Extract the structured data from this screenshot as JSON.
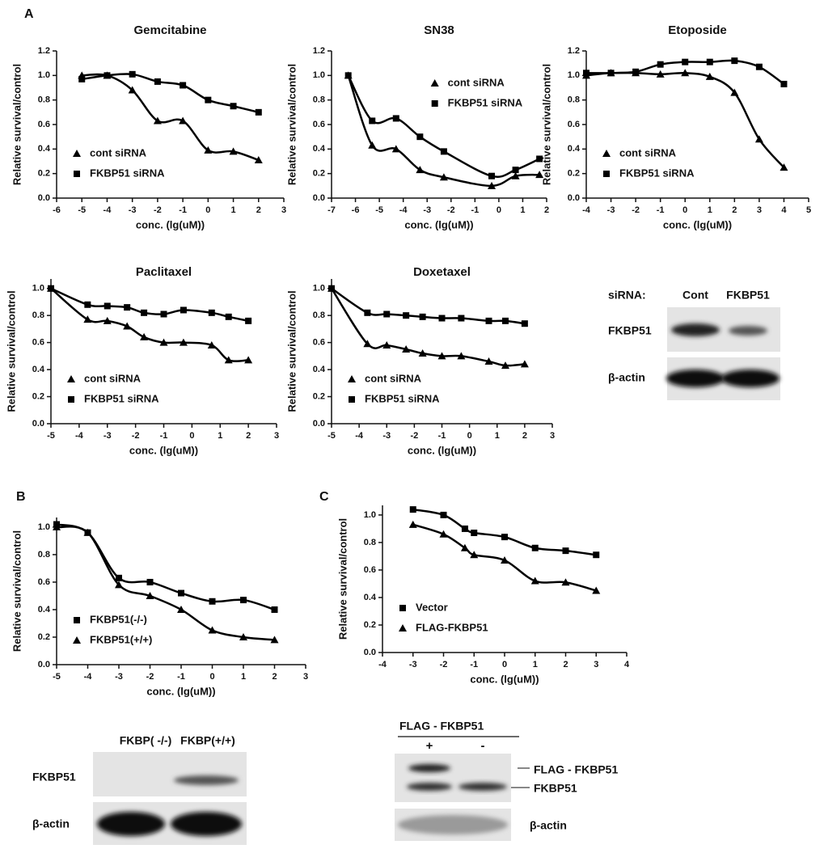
{
  "panel_labels": [
    "A",
    "B",
    "C"
  ],
  "chart_data": [
    {
      "type": "scatter",
      "title": "Gemcitabine",
      "x_label": "conc. (lg(uM))",
      "y_label": "Relative survival/control",
      "x": [
        -5,
        -4,
        -3,
        -2,
        -1,
        0,
        1,
        2
      ],
      "series": [
        {
          "name": "cont siRNA",
          "marker": "triangle",
          "color": "#000000",
          "values": [
            1.0,
            1.0,
            0.88,
            0.63,
            0.63,
            0.39,
            0.38,
            0.31
          ]
        },
        {
          "name": "FKBP51 siRNA",
          "marker": "square",
          "color": "#000000",
          "values": [
            0.97,
            1.0,
            1.01,
            0.95,
            0.92,
            0.8,
            0.75,
            0.7
          ]
        }
      ],
      "xlim": [
        -6,
        3
      ],
      "xticks": [
        -6,
        -5,
        -4,
        -3,
        -2,
        -1,
        0,
        1,
        2,
        3
      ],
      "ylim": [
        0,
        1.2
      ],
      "yticks": [
        {
          "value": 0,
          "label": "0.0"
        },
        0.2,
        0.4,
        0.6,
        0.8,
        {
          "value": 1,
          "label": "1.0"
        },
        1.2
      ],
      "legend": "lower left"
    },
    {
      "type": "scatter",
      "title": "SN38",
      "x_label": "conc. (lg(uM))",
      "y_label": "Relative survival/control",
      "x": [
        -6.3,
        -5.3,
        -4.3,
        -3.3,
        -2.3,
        -0.3,
        0.7,
        1.7
      ],
      "series": [
        {
          "name": "cont siRNA",
          "marker": "triangle",
          "color": "#000000",
          "values": [
            1.0,
            0.43,
            0.4,
            0.23,
            0.17,
            0.1,
            0.18,
            0.19
          ]
        },
        {
          "name": "FKBP51 siRNA",
          "marker": "square",
          "color": "#000000",
          "values": [
            1.0,
            0.63,
            0.65,
            0.5,
            0.38,
            0.18,
            0.23,
            0.32
          ]
        }
      ],
      "xlim": [
        -7,
        2
      ],
      "xticks": [
        -7,
        -6,
        -5,
        -4,
        -3,
        -2,
        -1,
        0,
        1,
        2
      ],
      "ylim": [
        0,
        1.2
      ],
      "yticks": [
        {
          "value": 0,
          "label": "0.0"
        },
        0.2,
        0.4,
        0.6,
        0.8,
        {
          "value": 1,
          "label": "1.0"
        },
        1.2
      ],
      "legend": "upper right"
    },
    {
      "type": "scatter",
      "title": "Etoposide",
      "x_label": "conc. (lg(uM))",
      "y_label": "Relative survival/control",
      "x": [
        -4,
        -3,
        -2,
        -1,
        0,
        1,
        2,
        3,
        4
      ],
      "series": [
        {
          "name": "cont siRNA",
          "marker": "triangle",
          "color": "#000000",
          "values": [
            1.0,
            1.02,
            1.02,
            1.01,
            1.02,
            0.99,
            0.86,
            0.48,
            0.25
          ]
        },
        {
          "name": "FKBP51 siRNA",
          "marker": "square",
          "color": "#000000",
          "values": [
            1.02,
            1.02,
            1.03,
            1.09,
            1.11,
            1.11,
            1.12,
            1.07,
            0.93
          ]
        }
      ],
      "xlim": [
        -4,
        5
      ],
      "xticks": [
        -4,
        -3,
        -2,
        -1,
        0,
        1,
        2,
        3,
        4,
        5
      ],
      "ylim": [
        0,
        1.2
      ],
      "yticks": [
        {
          "value": 0,
          "label": "0.0"
        },
        0.2,
        0.4,
        0.6,
        0.8,
        {
          "value": 1,
          "label": "1.0"
        },
        1.2
      ],
      "legend": "lower left"
    },
    {
      "type": "scatter",
      "title": "Paclitaxel",
      "x_label": "conc. (lg(uM))",
      "y_label": "Relative survival/control",
      "x": [
        -5,
        -3.7,
        -3,
        -2.3,
        -1.7,
        -1,
        -0.3,
        0.7,
        1.3,
        2
      ],
      "series": [
        {
          "name": "cont siRNA",
          "marker": "triangle",
          "color": "#000000",
          "values": [
            1.0,
            0.77,
            0.76,
            0.72,
            0.64,
            0.6,
            0.6,
            0.58,
            0.47,
            0.47
          ]
        },
        {
          "name": "FKBP51 siRNA",
          "marker": "square",
          "color": "#000000",
          "values": [
            1.0,
            0.88,
            0.87,
            0.86,
            0.82,
            0.81,
            0.84,
            0.82,
            0.79,
            0.76
          ]
        }
      ],
      "xlim": [
        -5,
        3
      ],
      "xticks": [
        -5,
        -4,
        -3,
        -2,
        -1,
        0,
        1,
        2,
        3
      ],
      "ylim": [
        0,
        1.07
      ],
      "yticks": [
        {
          "value": 0,
          "label": "0.0"
        },
        0.2,
        0.4,
        0.6,
        0.8,
        {
          "value": 1,
          "label": "1.0"
        }
      ],
      "legend": "lower left"
    },
    {
      "type": "scatter",
      "title": "Doxetaxel",
      "x_label": "conc. (lg(uM))",
      "y_label": "Relative survival/control",
      "x": [
        -5,
        -3.7,
        -3,
        -2.3,
        -1.7,
        -1,
        -0.3,
        0.7,
        1.3,
        2
      ],
      "series": [
        {
          "name": "cont siRNA",
          "marker": "triangle",
          "color": "#000000",
          "values": [
            1.0,
            0.59,
            0.58,
            0.55,
            0.52,
            0.5,
            0.5,
            0.46,
            0.43,
            0.44
          ]
        },
        {
          "name": "FKBP51 siRNA",
          "marker": "square",
          "color": "#000000",
          "values": [
            1.0,
            0.82,
            0.81,
            0.8,
            0.79,
            0.78,
            0.78,
            0.76,
            0.76,
            0.74
          ]
        }
      ],
      "xlim": [
        -5,
        3
      ],
      "xticks": [
        -5,
        -4,
        -3,
        -2,
        -1,
        0,
        1,
        2,
        3
      ],
      "ylim": [
        0,
        1.07
      ],
      "yticks": [
        {
          "value": 0,
          "label": "0.0"
        },
        0.2,
        0.4,
        0.6,
        0.8,
        {
          "value": 1,
          "label": "1.0"
        }
      ],
      "legend": "lower left"
    },
    {
      "type": "scatter",
      "x_label": "conc. (lg(uM))",
      "y_label": "Relative survival/control",
      "x": [
        -5,
        -4,
        -3,
        -2,
        -1,
        0,
        1,
        2
      ],
      "series": [
        {
          "name": "FKBP51(-/-)",
          "marker": "square",
          "color": "#000000",
          "values": [
            1.02,
            0.96,
            0.63,
            0.6,
            0.52,
            0.46,
            0.47,
            0.4
          ]
        },
        {
          "name": "FKBP51(+/+)",
          "marker": "triangle",
          "color": "#000000",
          "values": [
            1.0,
            0.96,
            0.58,
            0.5,
            0.4,
            0.25,
            0.2,
            0.18
          ]
        }
      ],
      "xlim": [
        -5,
        3
      ],
      "xticks": [
        -5,
        -4,
        -3,
        -2,
        -1,
        0,
        1,
        2,
        3
      ],
      "ylim": [
        0,
        1.07
      ],
      "yticks": [
        {
          "value": 0,
          "label": "0.0"
        },
        0.2,
        0.4,
        0.6,
        0.8,
        {
          "value": 1,
          "label": "1.0"
        }
      ],
      "legend": "lower left"
    },
    {
      "type": "scatter",
      "x_label": "conc. (lg(uM))",
      "y_label": "Relative survival/control",
      "x": [
        -3,
        -2,
        -1.3,
        -1,
        0,
        1,
        2,
        3
      ],
      "series": [
        {
          "name": "Vector",
          "marker": "square",
          "color": "#000000",
          "values": [
            1.04,
            1.0,
            0.9,
            0.87,
            0.84,
            0.76,
            0.74,
            0.71
          ]
        },
        {
          "name": "FLAG-FKBP51",
          "marker": "triangle",
          "color": "#000000",
          "values": [
            0.93,
            0.86,
            0.76,
            0.71,
            0.67,
            0.52,
            0.51,
            0.45
          ]
        }
      ],
      "xlim": [
        -4,
        4
      ],
      "xticks": [
        -4,
        -3,
        -2,
        -1,
        0,
        1,
        2,
        3,
        4
      ],
      "ylim": [
        0,
        1.07
      ],
      "yticks": [
        {
          "value": 0,
          "label": "0.0"
        },
        0.2,
        0.4,
        0.6,
        0.8,
        {
          "value": 1,
          "label": "1.0"
        }
      ],
      "legend": "lower left"
    }
  ],
  "blots": [
    {
      "header": [
        "siRNA:",
        "Cont",
        "FKBP51"
      ],
      "rows": [
        "FKBP51",
        "β-actin"
      ]
    },
    {
      "header": [
        "FKBP( -/-)",
        "FKBP(+/+)"
      ],
      "rows": [
        "FKBP51",
        "β-actin"
      ]
    },
    {
      "header": "FLAG - FKBP51",
      "lanes": [
        "+",
        "-"
      ],
      "bands": [
        "FLAG - FKBP51",
        "FKBP51"
      ],
      "rows": [
        "β-actin"
      ]
    }
  ]
}
